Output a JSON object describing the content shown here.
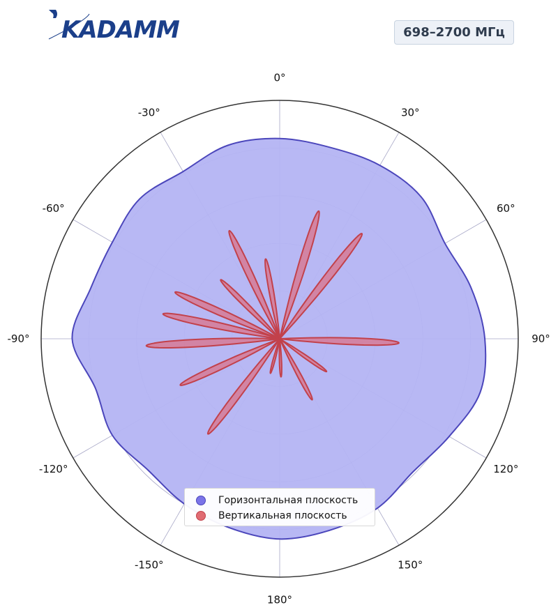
{
  "header": {
    "logo_text": "KADAMM",
    "frequency_badge": "698–2700 МГц"
  },
  "colors": {
    "horizontal_fill": "#b4b4f3",
    "horizontal_line": "#4b46bb",
    "vertical_fill": "#d67a95",
    "vertical_line": "#c2414b",
    "logo": "#1b3f8a",
    "axis": "#333333",
    "grid": "#a6a6c6"
  },
  "chart_data": {
    "type": "polar",
    "angular_ticks": [
      "0°",
      "30°",
      "60°",
      "90°",
      "120°",
      "150°",
      "180°",
      "-150°",
      "-120°",
      "-90°",
      "-60°",
      "-30°"
    ],
    "angular_tick_values": [
      0,
      30,
      60,
      90,
      120,
      150,
      180,
      -150,
      -120,
      -90,
      -60,
      -30
    ],
    "direction": "clockwise",
    "zero_location": "top",
    "radial_range": [
      0,
      1
    ],
    "radial_grid": [
      0.2,
      0.4,
      0.6,
      0.8
    ],
    "radial_tick_labels_shown": false,
    "grid": true,
    "legend_position": "bottom-center",
    "series": [
      {
        "name": "Горизонтальная плоскость",
        "kind": "filled-curve",
        "angles": [
          0,
          15,
          30,
          45,
          60,
          75,
          90,
          105,
          120,
          135,
          150,
          165,
          180,
          -165,
          -150,
          -135,
          -120,
          -105,
          -90,
          -75,
          -60,
          -45,
          -30,
          -15
        ],
        "values": [
          0.84,
          0.83,
          0.84,
          0.84,
          0.8,
          0.83,
          0.86,
          0.87,
          0.82,
          0.79,
          0.82,
          0.83,
          0.84,
          0.82,
          0.8,
          0.78,
          0.81,
          0.8,
          0.87,
          0.82,
          0.81,
          0.83,
          0.81,
          0.84
        ]
      },
      {
        "name": "Вертикальная плоскость",
        "kind": "lobes",
        "lobes": [
          {
            "angle": 17,
            "value": 0.56
          },
          {
            "angle": 38,
            "value": 0.56
          },
          {
            "angle": 92,
            "value": 0.5
          },
          {
            "angle": 125,
            "value": 0.24
          },
          {
            "angle": 152,
            "value": 0.29
          },
          {
            "angle": 178,
            "value": 0.16
          },
          {
            "angle": -165,
            "value": 0.15
          },
          {
            "angle": -143,
            "value": 0.5
          },
          {
            "angle": -115,
            "value": 0.46
          },
          {
            "angle": -93,
            "value": 0.56
          },
          {
            "angle": -78,
            "value": 0.5
          },
          {
            "angle": -66,
            "value": 0.48
          },
          {
            "angle": -45,
            "value": 0.35
          },
          {
            "angle": -25,
            "value": 0.5
          },
          {
            "angle": -10,
            "value": 0.34
          }
        ],
        "lobe_half_width_deg": 4.5
      }
    ]
  },
  "legend": {
    "items": [
      {
        "label": "Горизонтальная плоскость"
      },
      {
        "label": "Вертикальная плоскость"
      }
    ]
  }
}
